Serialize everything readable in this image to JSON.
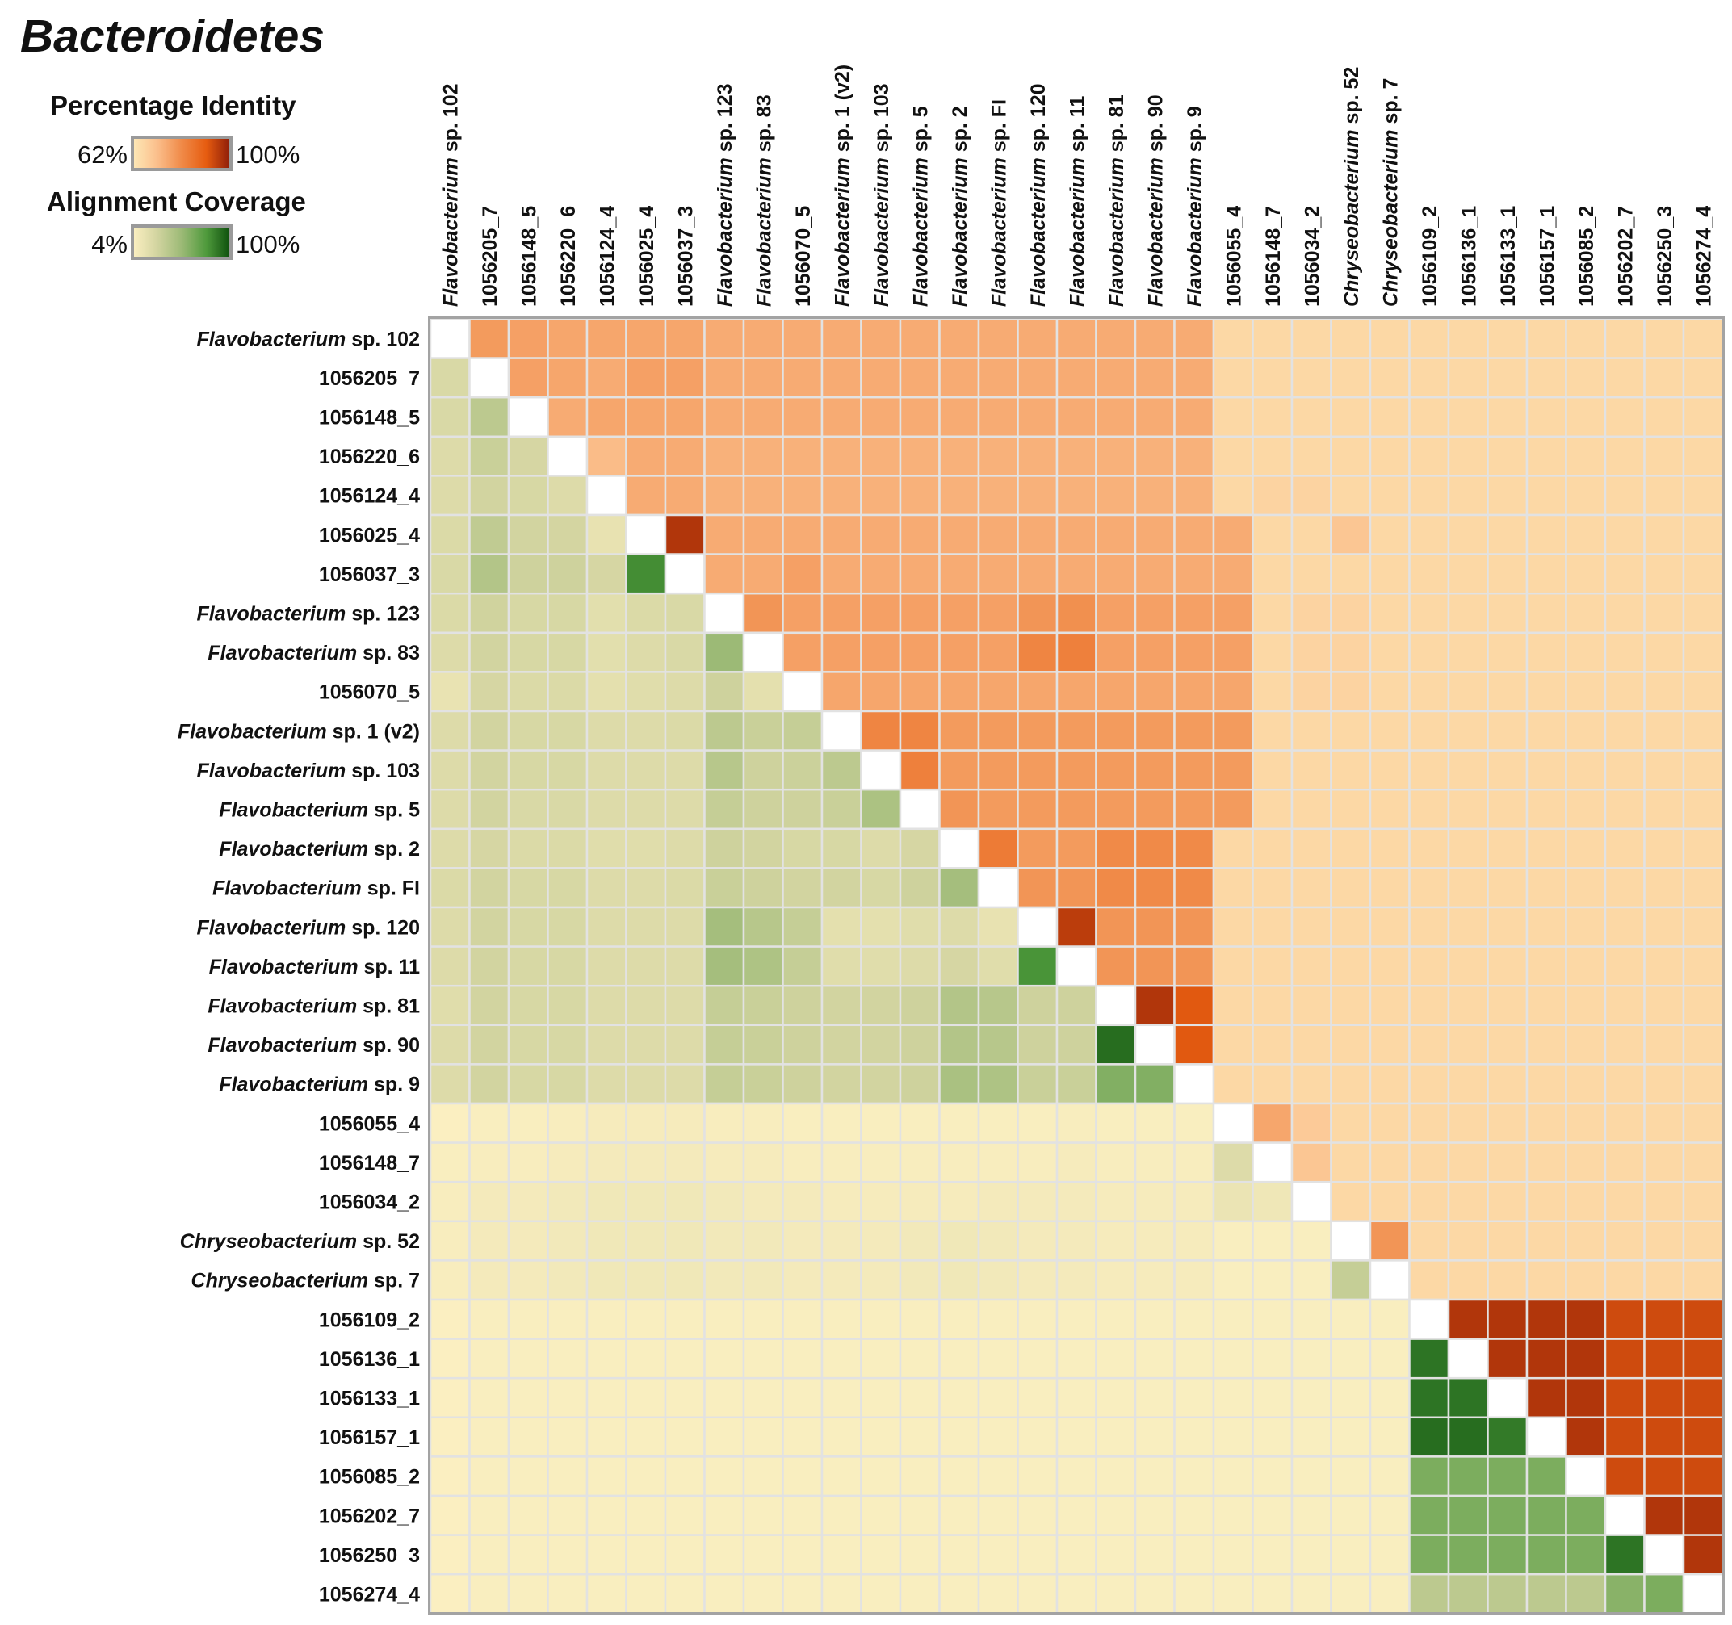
{
  "chart_data": {
    "type": "heatmap",
    "title": "Bacteroidetes",
    "upper_triangle_metric": "Percentage Identity",
    "lower_triangle_metric": "Alignment Coverage",
    "legend": {
      "identity": {
        "label": "Percentage Identity",
        "min_label": "62%",
        "max_label": "100%",
        "min": 62,
        "max": 100,
        "colors": [
          "#fdeab8",
          "#fbbf8c",
          "#f08a48",
          "#e65c10",
          "#8b1a08"
        ]
      },
      "coverage": {
        "label": "Alignment Coverage",
        "min_label": "4%",
        "max_label": "100%",
        "min": 4,
        "max": 100,
        "colors": [
          "#fdf0c2",
          "#d2d4a0",
          "#9cba76",
          "#4f9a3c",
          "#0b4d0b"
        ]
      }
    },
    "labels": [
      {
        "pre": "Flavobacterium",
        "post": " sp. 102"
      },
      {
        "pre": "",
        "post": "1056205_7"
      },
      {
        "pre": "",
        "post": "1056148_5"
      },
      {
        "pre": "",
        "post": "1056220_6"
      },
      {
        "pre": "",
        "post": "1056124_4"
      },
      {
        "pre": "",
        "post": "1056025_4"
      },
      {
        "pre": "",
        "post": "1056037_3"
      },
      {
        "pre": "Flavobacterium",
        "post": " sp. 123"
      },
      {
        "pre": "Flavobacterium",
        "post": " sp. 83"
      },
      {
        "pre": "",
        "post": "1056070_5"
      },
      {
        "pre": "Flavobacterium",
        "post": " sp. 1 (v2)"
      },
      {
        "pre": "Flavobacterium",
        "post": " sp. 103"
      },
      {
        "pre": "Flavobacterium",
        "post": " sp. 5"
      },
      {
        "pre": "Flavobacterium",
        "post": " sp. 2"
      },
      {
        "pre": "Flavobacterium",
        "post": " sp. FI"
      },
      {
        "pre": "Flavobacterium",
        "post": " sp. 120"
      },
      {
        "pre": "Flavobacterium",
        "post": " sp. 11"
      },
      {
        "pre": "Flavobacterium",
        "post": " sp. 81"
      },
      {
        "pre": "Flavobacterium",
        "post": " sp. 90"
      },
      {
        "pre": "Flavobacterium",
        "post": " sp. 9"
      },
      {
        "pre": "",
        "post": "1056055_4"
      },
      {
        "pre": "",
        "post": "1056148_7"
      },
      {
        "pre": "",
        "post": "1056034_2"
      },
      {
        "pre": "Chryseobacterium",
        "post": " sp. 52"
      },
      {
        "pre": "Chryseobacterium",
        "post": " sp. 7"
      },
      {
        "pre": "",
        "post": "1056109_2"
      },
      {
        "pre": "",
        "post": "1056136_1"
      },
      {
        "pre": "",
        "post": "1056133_1"
      },
      {
        "pre": "",
        "post": "1056157_1"
      },
      {
        "pre": "",
        "post": "1056085_2"
      },
      {
        "pre": "",
        "post": "1056202_7"
      },
      {
        "pre": "",
        "post": "1056250_3"
      },
      {
        "pre": "",
        "post": "1056274_4"
      }
    ],
    "identity_upper_rows": [
      [
        78,
        77,
        76,
        76,
        76,
        76,
        75,
        75,
        75,
        75,
        75,
        75,
        75,
        75,
        75,
        75,
        75,
        75,
        75,
        66,
        66,
        66,
        66,
        66,
        66,
        66,
        66,
        66,
        66,
        66,
        66,
        66
      ],
      [
        77,
        76,
        75,
        77,
        77,
        75,
        75,
        75,
        75,
        75,
        75,
        75,
        75,
        75,
        75,
        75,
        75,
        75,
        66,
        66,
        66,
        66,
        66,
        66,
        66,
        66,
        66,
        66,
        66,
        66,
        66
      ],
      [
        75,
        76,
        76,
        76,
        75,
        75,
        75,
        75,
        75,
        75,
        75,
        75,
        75,
        75,
        75,
        75,
        75,
        66,
        66,
        66,
        66,
        66,
        66,
        66,
        66,
        66,
        66,
        66,
        66,
        66
      ],
      [
        72,
        75,
        75,
        74,
        74,
        74,
        74,
        74,
        74,
        74,
        74,
        74,
        74,
        74,
        74,
        74,
        66,
        66,
        66,
        66,
        66,
        66,
        66,
        66,
        66,
        66,
        66,
        66,
        66
      ],
      [
        75,
        75,
        74,
        74,
        74,
        74,
        74,
        74,
        74,
        74,
        74,
        74,
        74,
        74,
        74,
        66,
        67,
        67,
        66,
        66,
        66,
        66,
        66,
        66,
        66,
        66,
        66,
        66
      ],
      [
        96,
        75,
        75,
        75,
        75,
        75,
        75,
        75,
        75,
        75,
        75,
        75,
        75,
        75,
        75,
        66,
        66,
        70,
        66,
        66,
        66,
        66,
        66,
        66,
        66,
        66,
        66,
        66
      ],
      [
        75,
        75,
        77,
        75,
        75,
        75,
        75,
        75,
        75,
        75,
        75,
        75,
        75,
        75,
        66,
        66,
        66,
        66,
        66,
        66,
        66,
        66,
        66,
        66,
        66,
        66,
        66
      ],
      [
        79,
        77,
        77,
        77,
        77,
        77,
        77,
        79,
        80,
        77,
        77,
        77,
        77,
        66,
        67,
        67,
        66,
        66,
        66,
        66,
        66,
        66,
        66,
        66,
        66,
        66
      ],
      [
        77,
        77,
        77,
        77,
        77,
        77,
        82,
        83,
        77,
        77,
        77,
        77,
        66,
        67,
        67,
        66,
        66,
        66,
        66,
        66,
        66,
        66,
        66,
        66,
        66
      ],
      [
        76,
        76,
        76,
        76,
        76,
        76,
        76,
        76,
        76,
        76,
        76,
        66,
        67,
        67,
        66,
        66,
        66,
        66,
        66,
        66,
        66,
        66,
        66,
        66
      ],
      [
        82,
        82,
        78,
        78,
        78,
        78,
        78,
        78,
        78,
        78,
        66,
        66,
        66,
        66,
        66,
        66,
        66,
        66,
        66,
        66,
        66,
        66,
        66
      ],
      [
        83,
        78,
        78,
        78,
        78,
        78,
        78,
        78,
        78,
        66,
        66,
        66,
        66,
        66,
        66,
        66,
        66,
        66,
        66,
        66,
        66,
        66
      ],
      [
        79,
        78,
        78,
        78,
        78,
        78,
        78,
        78,
        66,
        66,
        66,
        66,
        66,
        66,
        66,
        66,
        66,
        66,
        66,
        66,
        66
      ],
      [
        84,
        78,
        78,
        81,
        81,
        81,
        66,
        66,
        66,
        66,
        66,
        66,
        66,
        66,
        66,
        66,
        66,
        66,
        66,
        66
      ],
      [
        79,
        79,
        81,
        81,
        81,
        66,
        66,
        66,
        66,
        66,
        66,
        66,
        66,
        66,
        66,
        66,
        66,
        66,
        66
      ],
      [
        95,
        79,
        79,
        79,
        66,
        66,
        66,
        66,
        66,
        66,
        66,
        66,
        66,
        66,
        66,
        66,
        66,
        66
      ],
      [
        79,
        79,
        79,
        66,
        66,
        66,
        66,
        66,
        66,
        66,
        66,
        66,
        66,
        66,
        66,
        66,
        66
      ],
      [
        96,
        91,
        66,
        66,
        66,
        66,
        66,
        66,
        66,
        66,
        66,
        66,
        66,
        66,
        66,
        66
      ],
      [
        91,
        66,
        66,
        66,
        66,
        66,
        66,
        66,
        66,
        66,
        66,
        66,
        66,
        66,
        66
      ],
      [
        66,
        66,
        66,
        66,
        66,
        66,
        66,
        66,
        66,
        66,
        66,
        66,
        66,
        66
      ],
      [
        76,
        69,
        66,
        66,
        66,
        66,
        66,
        66,
        66,
        66,
        66,
        66,
        66
      ],
      [
        70,
        66,
        66,
        66,
        66,
        66,
        66,
        66,
        66,
        66,
        66,
        66
      ],
      [
        66,
        66,
        66,
        66,
        66,
        66,
        66,
        66,
        66,
        66,
        66
      ],
      [
        79,
        66,
        66,
        66,
        66,
        66,
        66,
        66,
        66,
        66
      ],
      [
        66,
        66,
        66,
        66,
        66,
        66,
        66,
        66,
        66
      ],
      [
        96,
        96,
        96,
        96,
        93,
        93,
        93
      ],
      [
        96,
        96,
        96,
        93,
        93,
        93
      ],
      [
        96,
        96,
        93,
        93,
        93
      ],
      [
        96,
        93,
        93,
        93
      ],
      [
        93,
        93,
        93
      ],
      [
        96,
        96
      ],
      [
        96
      ]
    ],
    "coverage_lower_rows": [
      [
        24
      ],
      [
        24,
        38
      ],
      [
        22,
        32,
        26
      ],
      [
        22,
        28,
        25,
        22
      ],
      [
        23,
        36,
        28,
        27,
        16
      ],
      [
        24,
        42,
        30,
        30,
        26,
        80
      ],
      [
        23,
        29,
        25,
        25,
        19,
        23,
        24
      ],
      [
        22,
        28,
        25,
        25,
        19,
        22,
        24,
        52
      ],
      [
        15,
        26,
        23,
        23,
        18,
        20,
        22,
        30,
        18
      ],
      [
        22,
        28,
        25,
        25,
        22,
        22,
        23,
        38,
        32,
        34
      ],
      [
        22,
        28,
        25,
        25,
        22,
        22,
        22,
        40,
        30,
        31,
        38
      ],
      [
        22,
        28,
        24,
        24,
        22,
        22,
        22,
        34,
        30,
        30,
        32,
        45
      ],
      [
        22,
        26,
        23,
        23,
        20,
        20,
        22,
        30,
        28,
        25,
        25,
        22,
        26
      ],
      [
        23,
        28,
        25,
        25,
        22,
        22,
        23,
        32,
        30,
        28,
        28,
        25,
        30,
        48
      ],
      [
        22,
        28,
        25,
        25,
        22,
        22,
        22,
        48,
        40,
        34,
        18,
        18,
        20,
        22,
        16
      ],
      [
        22,
        28,
        25,
        25,
        22,
        22,
        22,
        48,
        44,
        34,
        20,
        20,
        22,
        26,
        20,
        78
      ],
      [
        20,
        28,
        25,
        25,
        22,
        22,
        22,
        34,
        32,
        30,
        28,
        28,
        30,
        42,
        40,
        30,
        30
      ],
      [
        22,
        28,
        25,
        25,
        22,
        22,
        22,
        34,
        32,
        30,
        28,
        28,
        30,
        42,
        40,
        30,
        30,
        90
      ],
      [
        22,
        28,
        25,
        25,
        22,
        22,
        22,
        34,
        32,
        30,
        28,
        28,
        30,
        46,
        44,
        32,
        32,
        60,
        60
      ],
      [
        5,
        6,
        6,
        7,
        8,
        8,
        8,
        7,
        7,
        6,
        6,
        6,
        6,
        6,
        6,
        6,
        7,
        6,
        6,
        6
      ],
      [
        6,
        7,
        7,
        8,
        9,
        9,
        9,
        8,
        8,
        7,
        7,
        7,
        7,
        7,
        7,
        7,
        8,
        7,
        7,
        7,
        22
      ],
      [
        7,
        9,
        9,
        10,
        11,
        11,
        11,
        10,
        9,
        9,
        8,
        8,
        8,
        8,
        9,
        9,
        9,
        8,
        8,
        8,
        14,
        12
      ],
      [
        7,
        9,
        9,
        10,
        11,
        11,
        11,
        10,
        10,
        9,
        9,
        9,
        10,
        11,
        10,
        9,
        9,
        8,
        8,
        8,
        6,
        6,
        6
      ],
      [
        7,
        9,
        9,
        10,
        11,
        11,
        11,
        10,
        10,
        9,
        9,
        9,
        10,
        11,
        10,
        9,
        9,
        8,
        8,
        8,
        6,
        6,
        6,
        34
      ],
      [
        5,
        6,
        6,
        6,
        6,
        6,
        6,
        6,
        6,
        6,
        6,
        6,
        6,
        6,
        6,
        6,
        6,
        6,
        6,
        6,
        6,
        6,
        6,
        6,
        6
      ],
      [
        5,
        6,
        6,
        6,
        6,
        6,
        6,
        6,
        6,
        6,
        6,
        6,
        6,
        6,
        6,
        6,
        6,
        6,
        6,
        6,
        6,
        6,
        6,
        6,
        6,
        88
      ],
      [
        5,
        6,
        6,
        6,
        6,
        6,
        6,
        6,
        6,
        6,
        6,
        6,
        6,
        6,
        6,
        6,
        6,
        6,
        6,
        6,
        6,
        6,
        6,
        6,
        6,
        88,
        88
      ],
      [
        5,
        6,
        6,
        6,
        6,
        6,
        6,
        6,
        6,
        6,
        6,
        6,
        6,
        6,
        6,
        6,
        6,
        6,
        6,
        6,
        6,
        6,
        6,
        6,
        6,
        90,
        90,
        86
      ],
      [
        5,
        6,
        6,
        6,
        6,
        6,
        6,
        6,
        6,
        6,
        6,
        6,
        6,
        6,
        6,
        6,
        6,
        6,
        6,
        6,
        6,
        6,
        6,
        6,
        6,
        62,
        62,
        62,
        62
      ],
      [
        5,
        6,
        6,
        6,
        6,
        6,
        6,
        6,
        6,
        6,
        6,
        6,
        6,
        6,
        6,
        6,
        6,
        6,
        6,
        6,
        6,
        6,
        6,
        6,
        6,
        62,
        62,
        62,
        62,
        62
      ],
      [
        5,
        6,
        6,
        6,
        6,
        6,
        6,
        6,
        6,
        6,
        6,
        6,
        6,
        6,
        6,
        6,
        6,
        6,
        6,
        6,
        6,
        6,
        6,
        6,
        6,
        62,
        62,
        62,
        62,
        62,
        88
      ],
      [
        5,
        6,
        6,
        6,
        6,
        6,
        6,
        6,
        6,
        6,
        6,
        6,
        6,
        6,
        6,
        6,
        6,
        6,
        6,
        6,
        6,
        6,
        6,
        6,
        6,
        38,
        38,
        38,
        38,
        38,
        58,
        62
      ]
    ]
  }
}
